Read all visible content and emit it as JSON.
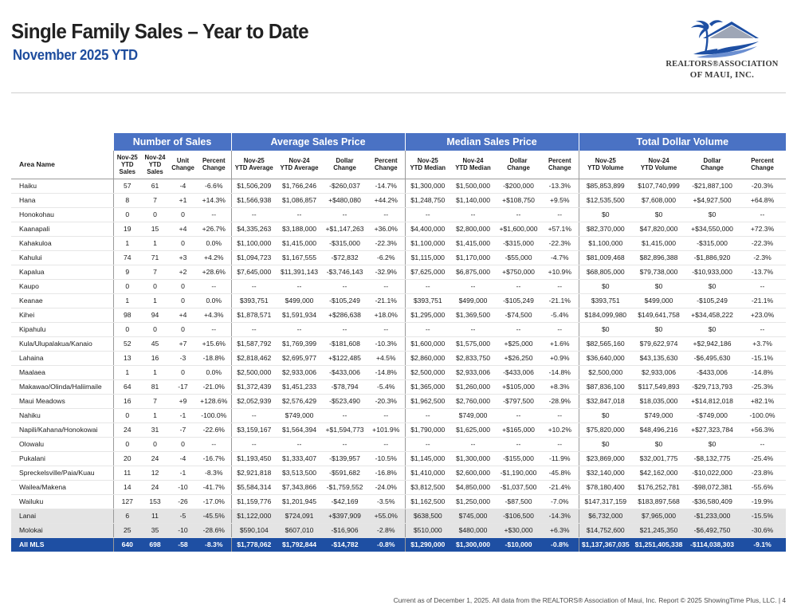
{
  "header": {
    "title": "Single Family Sales – Year to Date",
    "subtitle": "November 2025 YTD",
    "logo_line1": "REALTORS®ASSOCIATION",
    "logo_line2": "OF MAUI, INC."
  },
  "table": {
    "groups": [
      "Number of Sales",
      "Average Sales Price",
      "Median Sales Price",
      "Total Dollar Volume"
    ],
    "area_header": "Area Name",
    "subheaders": [
      [
        "Nov-25",
        "YTD",
        "Sales"
      ],
      [
        "Nov-24",
        "YTD",
        "Sales"
      ],
      [
        "Unit",
        "Change"
      ],
      [
        "Percent",
        "Change"
      ],
      [
        "Nov-25",
        "YTD Average"
      ],
      [
        "Nov-24",
        "YTD Average"
      ],
      [
        "Dollar",
        "Change"
      ],
      [
        "Percent",
        "Change"
      ],
      [
        "Nov-25",
        "YTD Median"
      ],
      [
        "Nov-24",
        "YTD Median"
      ],
      [
        "Dollar",
        "Change"
      ],
      [
        "Percent",
        "Change"
      ],
      [
        "Nov-25",
        "YTD Volume"
      ],
      [
        "Nov-24",
        "YTD Volume"
      ],
      [
        "Dollar",
        "Change"
      ],
      [
        "Percent",
        "Change"
      ]
    ],
    "rows": [
      [
        "Haiku",
        "57",
        "61",
        "-4",
        "-6.6%",
        "$1,506,209",
        "$1,766,246",
        "-$260,037",
        "-14.7%",
        "$1,300,000",
        "$1,500,000",
        "-$200,000",
        "-13.3%",
        "$85,853,899",
        "$107,740,999",
        "-$21,887,100",
        "-20.3%"
      ],
      [
        "Hana",
        "8",
        "7",
        "+1",
        "+14.3%",
        "$1,566,938",
        "$1,086,857",
        "+$480,080",
        "+44.2%",
        "$1,248,750",
        "$1,140,000",
        "+$108,750",
        "+9.5%",
        "$12,535,500",
        "$7,608,000",
        "+$4,927,500",
        "+64.8%"
      ],
      [
        "Honokohau",
        "0",
        "0",
        "0",
        "--",
        "--",
        "--",
        "--",
        "--",
        "--",
        "--",
        "--",
        "--",
        "$0",
        "$0",
        "$0",
        "--"
      ],
      [
        "Kaanapali",
        "19",
        "15",
        "+4",
        "+26.7%",
        "$4,335,263",
        "$3,188,000",
        "+$1,147,263",
        "+36.0%",
        "$4,400,000",
        "$2,800,000",
        "+$1,600,000",
        "+57.1%",
        "$82,370,000",
        "$47,820,000",
        "+$34,550,000",
        "+72.3%"
      ],
      [
        "Kahakuloa",
        "1",
        "1",
        "0",
        "0.0%",
        "$1,100,000",
        "$1,415,000",
        "-$315,000",
        "-22.3%",
        "$1,100,000",
        "$1,415,000",
        "-$315,000",
        "-22.3%",
        "$1,100,000",
        "$1,415,000",
        "-$315,000",
        "-22.3%"
      ],
      [
        "Kahului",
        "74",
        "71",
        "+3",
        "+4.2%",
        "$1,094,723",
        "$1,167,555",
        "-$72,832",
        "-6.2%",
        "$1,115,000",
        "$1,170,000",
        "-$55,000",
        "-4.7%",
        "$81,009,468",
        "$82,896,388",
        "-$1,886,920",
        "-2.3%"
      ],
      [
        "Kapalua",
        "9",
        "7",
        "+2",
        "+28.6%",
        "$7,645,000",
        "$11,391,143",
        "-$3,746,143",
        "-32.9%",
        "$7,625,000",
        "$6,875,000",
        "+$750,000",
        "+10.9%",
        "$68,805,000",
        "$79,738,000",
        "-$10,933,000",
        "-13.7%"
      ],
      [
        "Kaupo",
        "0",
        "0",
        "0",
        "--",
        "--",
        "--",
        "--",
        "--",
        "--",
        "--",
        "--",
        "--",
        "$0",
        "$0",
        "$0",
        "--"
      ],
      [
        "Keanae",
        "1",
        "1",
        "0",
        "0.0%",
        "$393,751",
        "$499,000",
        "-$105,249",
        "-21.1%",
        "$393,751",
        "$499,000",
        "-$105,249",
        "-21.1%",
        "$393,751",
        "$499,000",
        "-$105,249",
        "-21.1%"
      ],
      [
        "Kihei",
        "98",
        "94",
        "+4",
        "+4.3%",
        "$1,878,571",
        "$1,591,934",
        "+$286,638",
        "+18.0%",
        "$1,295,000",
        "$1,369,500",
        "-$74,500",
        "-5.4%",
        "$184,099,980",
        "$149,641,758",
        "+$34,458,222",
        "+23.0%"
      ],
      [
        "Kipahulu",
        "0",
        "0",
        "0",
        "--",
        "--",
        "--",
        "--",
        "--",
        "--",
        "--",
        "--",
        "--",
        "$0",
        "$0",
        "$0",
        "--"
      ],
      [
        "Kula/Ulupalakua/Kanaio",
        "52",
        "45",
        "+7",
        "+15.6%",
        "$1,587,792",
        "$1,769,399",
        "-$181,608",
        "-10.3%",
        "$1,600,000",
        "$1,575,000",
        "+$25,000",
        "+1.6%",
        "$82,565,160",
        "$79,622,974",
        "+$2,942,186",
        "+3.7%"
      ],
      [
        "Lahaina",
        "13",
        "16",
        "-3",
        "-18.8%",
        "$2,818,462",
        "$2,695,977",
        "+$122,485",
        "+4.5%",
        "$2,860,000",
        "$2,833,750",
        "+$26,250",
        "+0.9%",
        "$36,640,000",
        "$43,135,630",
        "-$6,495,630",
        "-15.1%"
      ],
      [
        "Maalaea",
        "1",
        "1",
        "0",
        "0.0%",
        "$2,500,000",
        "$2,933,006",
        "-$433,006",
        "-14.8%",
        "$2,500,000",
        "$2,933,006",
        "-$433,006",
        "-14.8%",
        "$2,500,000",
        "$2,933,006",
        "-$433,006",
        "-14.8%"
      ],
      [
        "Makawao/Olinda/Haliimaile",
        "64",
        "81",
        "-17",
        "-21.0%",
        "$1,372,439",
        "$1,451,233",
        "-$78,794",
        "-5.4%",
        "$1,365,000",
        "$1,260,000",
        "+$105,000",
        "+8.3%",
        "$87,836,100",
        "$117,549,893",
        "-$29,713,793",
        "-25.3%"
      ],
      [
        "Maui Meadows",
        "16",
        "7",
        "+9",
        "+128.6%",
        "$2,052,939",
        "$2,576,429",
        "-$523,490",
        "-20.3%",
        "$1,962,500",
        "$2,760,000",
        "-$797,500",
        "-28.9%",
        "$32,847,018",
        "$18,035,000",
        "+$14,812,018",
        "+82.1%"
      ],
      [
        "Nahiku",
        "0",
        "1",
        "-1",
        "-100.0%",
        "--",
        "$749,000",
        "--",
        "--",
        "--",
        "$749,000",
        "--",
        "--",
        "$0",
        "$749,000",
        "-$749,000",
        "-100.0%"
      ],
      [
        "Napili/Kahana/Honokowai",
        "24",
        "31",
        "-7",
        "-22.6%",
        "$3,159,167",
        "$1,564,394",
        "+$1,594,773",
        "+101.9%",
        "$1,790,000",
        "$1,625,000",
        "+$165,000",
        "+10.2%",
        "$75,820,000",
        "$48,496,216",
        "+$27,323,784",
        "+56.3%"
      ],
      [
        "Olowalu",
        "0",
        "0",
        "0",
        "--",
        "--",
        "--",
        "--",
        "--",
        "--",
        "--",
        "--",
        "--",
        "$0",
        "$0",
        "$0",
        "--"
      ],
      [
        "Pukalani",
        "20",
        "24",
        "-4",
        "-16.7%",
        "$1,193,450",
        "$1,333,407",
        "-$139,957",
        "-10.5%",
        "$1,145,000",
        "$1,300,000",
        "-$155,000",
        "-11.9%",
        "$23,869,000",
        "$32,001,775",
        "-$8,132,775",
        "-25.4%"
      ],
      [
        "Spreckelsville/Paia/Kuau",
        "11",
        "12",
        "-1",
        "-8.3%",
        "$2,921,818",
        "$3,513,500",
        "-$591,682",
        "-16.8%",
        "$1,410,000",
        "$2,600,000",
        "-$1,190,000",
        "-45.8%",
        "$32,140,000",
        "$42,162,000",
        "-$10,022,000",
        "-23.8%"
      ],
      [
        "Wailea/Makena",
        "14",
        "24",
        "-10",
        "-41.7%",
        "$5,584,314",
        "$7,343,866",
        "-$1,759,552",
        "-24.0%",
        "$3,812,500",
        "$4,850,000",
        "-$1,037,500",
        "-21.4%",
        "$78,180,400",
        "$176,252,781",
        "-$98,072,381",
        "-55.6%"
      ],
      [
        "Wailuku",
        "127",
        "153",
        "-26",
        "-17.0%",
        "$1,159,776",
        "$1,201,945",
        "-$42,169",
        "-3.5%",
        "$1,162,500",
        "$1,250,000",
        "-$87,500",
        "-7.0%",
        "$147,317,159",
        "$183,897,568",
        "-$36,580,409",
        "-19.9%"
      ]
    ],
    "island_rows": [
      [
        "Lanai",
        "6",
        "11",
        "-5",
        "-45.5%",
        "$1,122,000",
        "$724,091",
        "+$397,909",
        "+55.0%",
        "$638,500",
        "$745,000",
        "-$106,500",
        "-14.3%",
        "$6,732,000",
        "$7,965,000",
        "-$1,233,000",
        "-15.5%"
      ],
      [
        "Molokai",
        "25",
        "35",
        "-10",
        "-28.6%",
        "$590,104",
        "$607,010",
        "-$16,906",
        "-2.8%",
        "$510,000",
        "$480,000",
        "+$30,000",
        "+6.3%",
        "$14,752,600",
        "$21,245,350",
        "-$6,492,750",
        "-30.6%"
      ]
    ],
    "total_row": [
      "All MLS",
      "640",
      "698",
      "-58",
      "-8.3%",
      "$1,778,062",
      "$1,792,844",
      "-$14,782",
      "-0.8%",
      "$1,290,000",
      "$1,300,000",
      "-$10,000",
      "-0.8%",
      "$1,137,367,035",
      "$1,251,405,338",
      "-$114,038,303",
      "-9.1%"
    ]
  },
  "footer": {
    "text": "Current as of December 1, 2025. All data from the REALTORS® Association of Maui, Inc. Report © 2025 ShowingTime Plus, LLC.  |  4"
  },
  "colors": {
    "header_blue": "#4a72c4",
    "total_row_blue": "#1e4fa3",
    "subtitle_blue": "#1e4d9e",
    "shaded_row": "#e4e4e4"
  }
}
